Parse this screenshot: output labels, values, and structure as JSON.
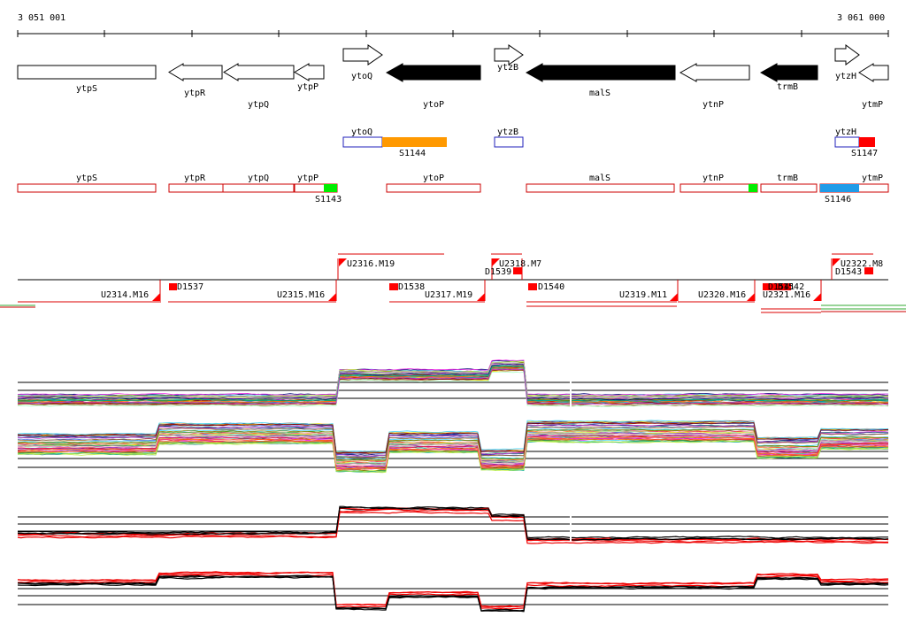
{
  "coords": {
    "start": "3 051 001",
    "end": "3 061 000"
  },
  "colors": {
    "black": "#000000",
    "orange": "#ff9900",
    "red": "#ff0000",
    "green": "#00ee00",
    "blue": "#1f9be8",
    "navy": "#2222bb",
    "outlineRed": "#cc0000",
    "teal": "#33aa33"
  },
  "genes": [
    {
      "label": "ytpS"
    },
    {
      "label": "ytpR"
    },
    {
      "label": "ytpQ"
    },
    {
      "label": "ytpP"
    },
    {
      "label": "ytoQ"
    },
    {
      "label": "ytoP"
    },
    {
      "label": "ytzB"
    },
    {
      "label": "malS"
    },
    {
      "label": "ytnP"
    },
    {
      "label": "trmB"
    },
    {
      "label": "ytzH"
    },
    {
      "label": "ytmP"
    }
  ],
  "upper_features": [
    {
      "label": "ytoQ"
    },
    {
      "label": "S1144"
    },
    {
      "label": "ytzB"
    },
    {
      "label": "ytzH"
    },
    {
      "label": "S1147"
    }
  ],
  "lower_features": [
    {
      "label": "ytpS"
    },
    {
      "label": "ytpR"
    },
    {
      "label": "ytpQ"
    },
    {
      "label": "ytpP"
    },
    {
      "label": "S1143"
    },
    {
      "label": "ytoP"
    },
    {
      "label": "malS"
    },
    {
      "label": "ytnP"
    },
    {
      "label": "trmB"
    },
    {
      "label": "ytmP"
    },
    {
      "label": "S1146"
    }
  ],
  "segments": [
    {
      "label": "U2314.M16"
    },
    {
      "label": "D1537"
    },
    {
      "label": "U2315.M16"
    },
    {
      "label": "U2316.M19"
    },
    {
      "label": "D1538"
    },
    {
      "label": "U2317.M19"
    },
    {
      "label": "U2318.M7"
    },
    {
      "label": "D1539"
    },
    {
      "label": "D1540"
    },
    {
      "label": "U2319.M11"
    },
    {
      "label": "U2320.M16"
    },
    {
      "label": "D1541"
    },
    {
      "label": "D1542"
    },
    {
      "label": "U2321.M16"
    },
    {
      "label": "U2322.M8"
    },
    {
      "label": "D1543"
    }
  ]
}
